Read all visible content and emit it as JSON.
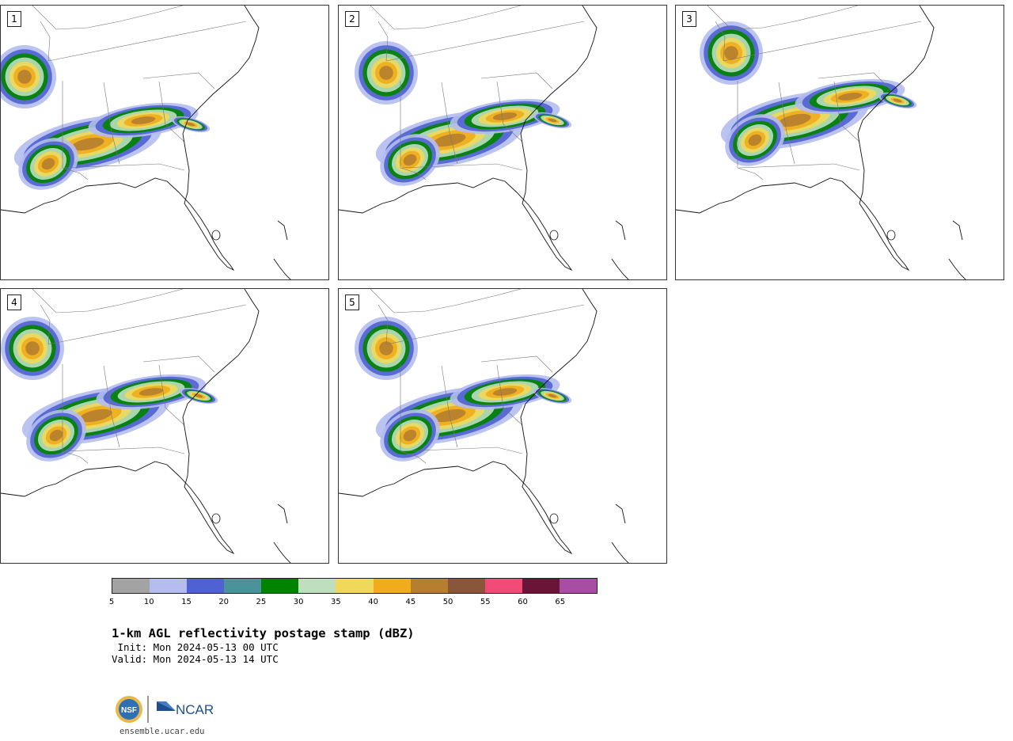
{
  "panels": [
    {
      "label": "1"
    },
    {
      "label": "2"
    },
    {
      "label": "3"
    },
    {
      "label": "4"
    },
    {
      "label": "5"
    }
  ],
  "colorbar": {
    "ticks": [
      "5",
      "10",
      "15",
      "20",
      "25",
      "30",
      "35",
      "40",
      "45",
      "50",
      "55",
      "60",
      "65"
    ],
    "colors": [
      "#a3a3a3",
      "#b4bdee",
      "#5062d3",
      "#4a9499",
      "#008400",
      "#bddfbe",
      "#f0d85a",
      "#f0ac1c",
      "#b67e2f",
      "#8a5639",
      "#f24b78",
      "#6a1538",
      "#a94ca4"
    ]
  },
  "title": "1-km AGL reflectivity postage stamp (dBZ)",
  "init": " Init: Mon 2024-05-13 00 UTC",
  "valid": "Valid: Mon 2024-05-13 14 UTC",
  "logos": {
    "nsf": "NSF",
    "ncar": "NCAR"
  },
  "website": "ensemble.ucar.edu"
}
